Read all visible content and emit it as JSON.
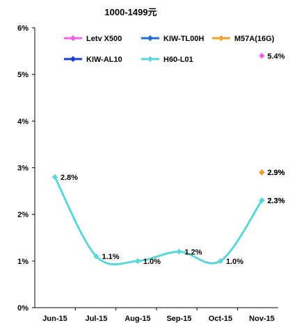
{
  "chart_data": {
    "type": "line",
    "title": "1000-1499元",
    "xlabel": "",
    "ylabel": "",
    "categories": [
      "Jun-15",
      "Jul-15",
      "Aug-15",
      "Sep-15",
      "Oct-15",
      "Nov-15"
    ],
    "ylim": [
      0,
      6
    ],
    "yticks": [
      0,
      1,
      2,
      3,
      4,
      5,
      6
    ],
    "ytick_labels": [
      "0%",
      "1%",
      "2%",
      "3%",
      "4%",
      "5%",
      "6%"
    ],
    "grid": false,
    "legend_position": "top",
    "series": [
      {
        "name": "Letv X500",
        "color": "#f060e8",
        "values": [
          null,
          null,
          null,
          null,
          null,
          5.4
        ],
        "labels": [
          null,
          null,
          null,
          null,
          null,
          "5.4%"
        ]
      },
      {
        "name": "KIW-TL00H",
        "color": "#1f6fd0",
        "values": [
          null,
          null,
          null,
          null,
          null,
          2.9
        ],
        "labels": [
          null,
          null,
          null,
          null,
          null,
          "2.9%"
        ]
      },
      {
        "name": "M57A(16G)",
        "color": "#f4a030",
        "values": [
          null,
          null,
          null,
          null,
          null,
          2.9
        ],
        "labels": [
          null,
          null,
          null,
          null,
          null,
          "2.9%"
        ]
      },
      {
        "name": "KIW-AL10",
        "color": "#1a3fd6",
        "values": [
          null,
          null,
          null,
          null,
          null,
          2.3
        ],
        "labels": [
          null,
          null,
          null,
          null,
          null,
          "2.3%"
        ]
      },
      {
        "name": "H60-L01",
        "color": "#5cd6d6",
        "values": [
          2.8,
          1.1,
          1.0,
          1.2,
          1.0,
          2.3
        ],
        "labels": [
          "2.8%",
          "1.1%",
          "1.0%",
          "1.2%",
          "1.0%",
          "2.3%"
        ]
      }
    ]
  }
}
